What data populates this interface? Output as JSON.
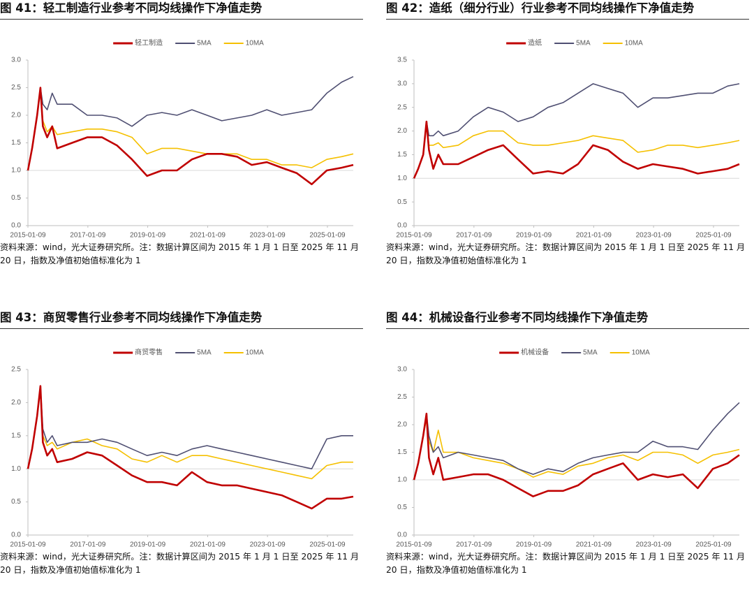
{
  "chart_data": [
    {
      "type": "line",
      "title": "图 41：轻工制造行业参考不同均线操作下净值走势",
      "source": "资料来源：wind，光大证券研究所。注：数据计算区间为 2015 年 1 月 1 日至 2025 年 11 月 20 日，指数及净值初始值标准化为 1",
      "x": [
        "2015-01-09",
        "2015-03-01",
        "2015-05-01",
        "2015-06-10",
        "2015-07-10",
        "2015-09-01",
        "2015-11-01",
        "2016-01-01",
        "2016-07-01",
        "2017-01-01",
        "2017-07-01",
        "2018-01-01",
        "2018-07-01",
        "2019-01-01",
        "2019-07-01",
        "2020-01-01",
        "2020-07-01",
        "2021-01-01",
        "2021-07-01",
        "2022-01-01",
        "2022-07-01",
        "2023-01-01",
        "2023-07-01",
        "2024-01-01",
        "2024-07-01",
        "2025-01-01",
        "2025-07-01",
        "2025-11-20"
      ],
      "series": [
        {
          "name": "轻工制造",
          "color": "#c00000",
          "values": [
            1.0,
            1.4,
            2.0,
            2.5,
            1.8,
            1.6,
            1.8,
            1.4,
            1.5,
            1.6,
            1.6,
            1.45,
            1.2,
            0.9,
            1.0,
            1.0,
            1.2,
            1.3,
            1.3,
            1.25,
            1.1,
            1.15,
            1.05,
            0.95,
            0.75,
            1.0,
            1.05,
            1.1
          ]
        },
        {
          "name": "5MA",
          "color": "#4f4f72",
          "values": [
            1.0,
            1.4,
            2.0,
            2.5,
            2.2,
            2.1,
            2.4,
            2.2,
            2.2,
            2.0,
            2.0,
            1.95,
            1.8,
            2.0,
            2.05,
            2.0,
            2.1,
            2.0,
            1.9,
            1.95,
            2.0,
            2.1,
            2.0,
            2.05,
            2.1,
            2.4,
            2.6,
            2.7
          ]
        },
        {
          "name": "10MA",
          "color": "#f5c000",
          "values": [
            1.0,
            1.4,
            2.0,
            2.45,
            1.9,
            1.7,
            1.8,
            1.65,
            1.7,
            1.75,
            1.75,
            1.7,
            1.6,
            1.3,
            1.4,
            1.4,
            1.35,
            1.3,
            1.3,
            1.3,
            1.2,
            1.2,
            1.1,
            1.1,
            1.05,
            1.2,
            1.25,
            1.3
          ]
        }
      ],
      "hline": 1,
      "xlim": [
        "2015-01-09",
        "2025-11-20"
      ],
      "xticks": [
        "2015-01-09",
        "2017-01-09",
        "2019-01-09",
        "2021-01-09",
        "2023-01-09",
        "2025-01-09"
      ],
      "ylim": [
        0,
        3
      ],
      "yticks": [
        {
          "value": 0,
          "label": "0.0"
        },
        {
          "value": 0.5,
          "label": "0.5"
        },
        {
          "value": 1,
          "label": "1.0"
        },
        {
          "value": 1.5,
          "label": "1.5"
        },
        {
          "value": 2,
          "label": "2.0"
        },
        {
          "value": 2.5,
          "label": "2.5"
        },
        {
          "value": 3,
          "label": "3.0"
        }
      ]
    },
    {
      "type": "line",
      "title": "图 42：造纸（细分行业）行业参考不同均线操作下净值走势",
      "source": "资料来源：wind，光大证券研究所。注：数据计算区间为 2015 年 1 月 1 日至 2025 年 11 月 20 日，指数及净值初始值标准化为 1",
      "x": [
        "2015-01-09",
        "2015-03-01",
        "2015-05-01",
        "2015-06-10",
        "2015-07-10",
        "2015-09-01",
        "2015-11-01",
        "2016-01-01",
        "2016-07-01",
        "2017-01-01",
        "2017-07-01",
        "2018-01-01",
        "2018-07-01",
        "2019-01-01",
        "2019-07-01",
        "2020-01-01",
        "2020-07-01",
        "2021-01-01",
        "2021-07-01",
        "2022-01-01",
        "2022-07-01",
        "2023-01-01",
        "2023-07-01",
        "2024-01-01",
        "2024-07-01",
        "2025-01-01",
        "2025-07-01",
        "2025-11-20"
      ],
      "series": [
        {
          "name": "造纸",
          "color": "#c00000",
          "values": [
            1.0,
            1.2,
            1.5,
            2.2,
            1.6,
            1.2,
            1.5,
            1.3,
            1.3,
            1.45,
            1.6,
            1.7,
            1.4,
            1.1,
            1.15,
            1.1,
            1.3,
            1.7,
            1.6,
            1.35,
            1.2,
            1.3,
            1.25,
            1.2,
            1.1,
            1.15,
            1.2,
            1.3
          ]
        },
        {
          "name": "5MA",
          "color": "#4f4f72",
          "values": [
            1.0,
            1.2,
            1.5,
            2.2,
            1.9,
            1.9,
            2.0,
            1.9,
            2.0,
            2.3,
            2.5,
            2.4,
            2.2,
            2.3,
            2.5,
            2.6,
            2.8,
            3.0,
            2.9,
            2.8,
            2.5,
            2.7,
            2.7,
            2.75,
            2.8,
            2.8,
            2.95,
            3.0
          ]
        },
        {
          "name": "10MA",
          "color": "#f5c000",
          "values": [
            1.0,
            1.2,
            1.5,
            2.2,
            1.7,
            1.7,
            1.75,
            1.65,
            1.7,
            1.9,
            2.0,
            2.0,
            1.75,
            1.7,
            1.7,
            1.75,
            1.8,
            1.9,
            1.85,
            1.8,
            1.55,
            1.6,
            1.7,
            1.7,
            1.65,
            1.7,
            1.75,
            1.8
          ]
        }
      ],
      "hline": 1,
      "xlim": [
        "2015-01-09",
        "2025-11-20"
      ],
      "xticks": [
        "2015-01-09",
        "2017-01-09",
        "2019-01-09",
        "2021-01-09",
        "2023-01-09",
        "2025-01-09"
      ],
      "ylim": [
        0,
        3.5
      ],
      "yticks": [
        {
          "value": 0,
          "label": "0.0"
        },
        {
          "value": 0.5,
          "label": "0.5"
        },
        {
          "value": 1,
          "label": "1.0"
        },
        {
          "value": 1.5,
          "label": "1.5"
        },
        {
          "value": 2,
          "label": "2.0"
        },
        {
          "value": 2.5,
          "label": "2.5"
        },
        {
          "value": 3,
          "label": "3.0"
        },
        {
          "value": 3.5,
          "label": "3.5"
        }
      ]
    },
    {
      "type": "line",
      "title": "图 43：商贸零售行业参考不同均线操作下净值走势",
      "source": "资料来源：wind，光大证券研究所。注：数据计算区间为 2015 年 1 月 1 日至 2025 年 11 月 20 日，指数及净值初始值标准化为 1",
      "x": [
        "2015-01-09",
        "2015-03-01",
        "2015-05-01",
        "2015-06-10",
        "2015-07-10",
        "2015-09-01",
        "2015-11-01",
        "2016-01-01",
        "2016-07-01",
        "2017-01-01",
        "2017-07-01",
        "2018-01-01",
        "2018-07-01",
        "2019-01-01",
        "2019-07-01",
        "2020-01-01",
        "2020-07-01",
        "2021-01-01",
        "2021-07-01",
        "2022-01-01",
        "2022-07-01",
        "2023-01-01",
        "2023-07-01",
        "2024-01-01",
        "2024-07-01",
        "2025-01-01",
        "2025-07-01",
        "2025-11-20"
      ],
      "series": [
        {
          "name": "商贸零售",
          "color": "#c00000",
          "values": [
            1.0,
            1.3,
            1.8,
            2.25,
            1.4,
            1.2,
            1.3,
            1.1,
            1.15,
            1.25,
            1.2,
            1.05,
            0.9,
            0.8,
            0.8,
            0.75,
            0.95,
            0.8,
            0.75,
            0.75,
            0.7,
            0.65,
            0.6,
            0.5,
            0.4,
            0.55,
            0.55,
            0.58
          ]
        },
        {
          "name": "5MA",
          "color": "#4f4f72",
          "values": [
            1.0,
            1.3,
            1.8,
            2.25,
            1.6,
            1.4,
            1.5,
            1.35,
            1.4,
            1.4,
            1.45,
            1.4,
            1.3,
            1.2,
            1.25,
            1.2,
            1.3,
            1.35,
            1.3,
            1.25,
            1.2,
            1.15,
            1.1,
            1.05,
            1.0,
            1.45,
            1.5,
            1.5
          ]
        },
        {
          "name": "10MA",
          "color": "#f5c000",
          "values": [
            1.0,
            1.3,
            1.8,
            2.25,
            1.5,
            1.35,
            1.4,
            1.3,
            1.4,
            1.45,
            1.35,
            1.3,
            1.15,
            1.1,
            1.2,
            1.1,
            1.2,
            1.2,
            1.15,
            1.1,
            1.05,
            1.0,
            0.95,
            0.9,
            0.85,
            1.05,
            1.1,
            1.1
          ]
        }
      ],
      "hline": 1,
      "xlim": [
        "2015-01-09",
        "2025-11-20"
      ],
      "xticks": [
        "2015-01-09",
        "2017-01-09",
        "2019-01-09",
        "2021-01-09",
        "2023-01-09",
        "2025-01-09"
      ],
      "ylim": [
        0,
        2.5
      ],
      "yticks": [
        {
          "value": 0,
          "label": "0.0"
        },
        {
          "value": 0.5,
          "label": "0.5"
        },
        {
          "value": 1,
          "label": "1.0"
        },
        {
          "value": 1.5,
          "label": "1.5"
        },
        {
          "value": 2,
          "label": "2.0"
        },
        {
          "value": 2.5,
          "label": "2.5"
        }
      ]
    },
    {
      "type": "line",
      "title": "图 44：机械设备行业参考不同均线操作下净值走势",
      "source": "资料来源：wind，光大证券研究所。注：数据计算区间为 2015 年 1 月 1 日至 2025 年 11 月 20 日，指数及净值初始值标准化为 1",
      "x": [
        "2015-01-09",
        "2015-03-01",
        "2015-05-01",
        "2015-06-10",
        "2015-07-10",
        "2015-09-01",
        "2015-11-01",
        "2016-01-01",
        "2016-07-01",
        "2017-01-01",
        "2017-07-01",
        "2018-01-01",
        "2018-07-01",
        "2019-01-01",
        "2019-07-01",
        "2020-01-01",
        "2020-07-01",
        "2021-01-01",
        "2021-07-01",
        "2022-01-01",
        "2022-07-01",
        "2023-01-01",
        "2023-07-01",
        "2024-01-01",
        "2024-07-01",
        "2025-01-01",
        "2025-07-01",
        "2025-11-20"
      ],
      "series": [
        {
          "name": "机械设备",
          "color": "#c00000",
          "values": [
            1.0,
            1.3,
            1.8,
            2.2,
            1.4,
            1.1,
            1.4,
            1.0,
            1.05,
            1.1,
            1.1,
            1.0,
            0.85,
            0.7,
            0.8,
            0.8,
            0.9,
            1.1,
            1.2,
            1.3,
            1.0,
            1.1,
            1.05,
            1.1,
            0.85,
            1.2,
            1.3,
            1.45
          ]
        },
        {
          "name": "5MA",
          "color": "#4f4f72",
          "values": [
            1.0,
            1.3,
            1.8,
            2.2,
            1.8,
            1.5,
            1.6,
            1.4,
            1.5,
            1.45,
            1.4,
            1.35,
            1.2,
            1.1,
            1.2,
            1.15,
            1.3,
            1.4,
            1.45,
            1.5,
            1.5,
            1.7,
            1.6,
            1.6,
            1.55,
            1.9,
            2.2,
            2.4
          ]
        },
        {
          "name": "10MA",
          "color": "#f5c000",
          "values": [
            1.0,
            1.3,
            1.8,
            2.1,
            1.7,
            1.5,
            1.9,
            1.5,
            1.5,
            1.4,
            1.35,
            1.3,
            1.2,
            1.05,
            1.15,
            1.1,
            1.25,
            1.3,
            1.4,
            1.45,
            1.35,
            1.5,
            1.5,
            1.45,
            1.3,
            1.45,
            1.5,
            1.55
          ]
        }
      ],
      "hline": 1,
      "xlim": [
        "2015-01-09",
        "2025-11-20"
      ],
      "xticks": [
        "2015-01-09",
        "2017-01-09",
        "2019-01-09",
        "2021-01-09",
        "2023-01-09",
        "2025-01-09"
      ],
      "ylim": [
        0,
        3
      ],
      "yticks": [
        {
          "value": 0,
          "label": "0.0"
        },
        {
          "value": 0.5,
          "label": "0.5"
        },
        {
          "value": 1,
          "label": "1.0"
        },
        {
          "value": 1.5,
          "label": "1.5"
        },
        {
          "value": 2,
          "label": "2.0"
        },
        {
          "value": 2.5,
          "label": "2.5"
        },
        {
          "value": 3,
          "label": "3.0"
        }
      ]
    }
  ]
}
